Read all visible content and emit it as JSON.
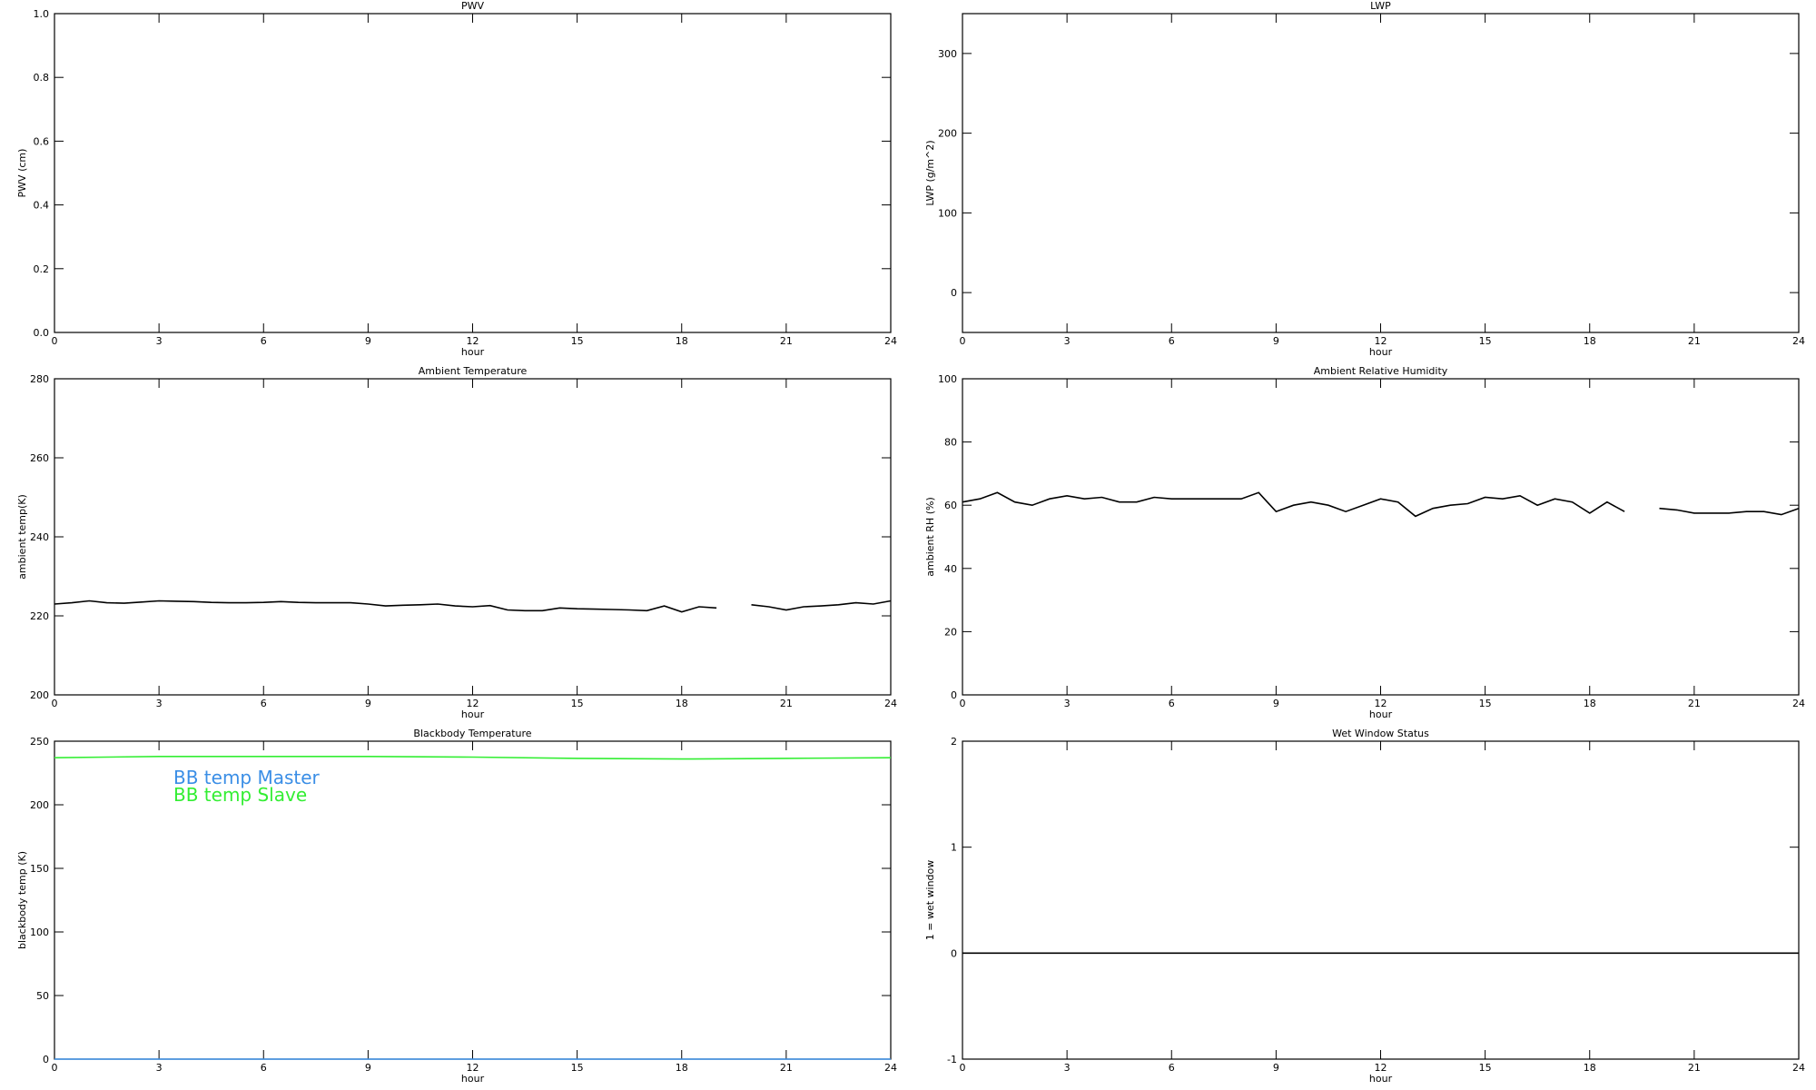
{
  "chart_data": [
    {
      "type": "line",
      "title": "PWV",
      "xlabel": "hour",
      "ylabel": "PWV (cm)",
      "xlim": [
        0,
        24
      ],
      "xticks": [
        0,
        3,
        6,
        9,
        12,
        15,
        18,
        21,
        24
      ],
      "ylim": [
        0,
        1
      ],
      "yticks": [
        {
          "value": 0,
          "label": "0.0"
        },
        0.2,
        0.4,
        0.6,
        0.8,
        {
          "value": 1,
          "label": "1.0"
        }
      ]
    },
    {
      "type": "line",
      "title": "LWP",
      "xlabel": "hour",
      "ylabel": "LWP (g/m^2)",
      "xlim": [
        0,
        24
      ],
      "xticks": [
        0,
        3,
        6,
        9,
        12,
        15,
        18,
        21,
        24
      ],
      "ylim": [
        -50,
        350
      ],
      "yticks": [
        0,
        100,
        200,
        300
      ]
    },
    {
      "type": "line",
      "title": "Ambient Temperature",
      "xlabel": "hour",
      "ylabel": "ambient temp(K)",
      "xlim": [
        0,
        24
      ],
      "xticks": [
        0,
        3,
        6,
        9,
        12,
        15,
        18,
        21,
        24
      ],
      "ylim": [
        200,
        280
      ],
      "yticks": [
        200,
        220,
        240,
        260,
        280
      ],
      "x": [
        0,
        0.5,
        1,
        1.5,
        2,
        2.5,
        3,
        3.5,
        4,
        4.5,
        5,
        5.5,
        6,
        6.5,
        7,
        7.5,
        8,
        8.5,
        9,
        9.5,
        10,
        10.5,
        11,
        11.5,
        12,
        12.5,
        13,
        13.5,
        14,
        14.5,
        15,
        15.5,
        16,
        16.5,
        17,
        17.5,
        18,
        18.5,
        19,
        19.5,
        20,
        20.5,
        21,
        21.5,
        22,
        22.5,
        23,
        23.5,
        24
      ],
      "series": [
        {
          "color": "#000000",
          "values": [
            223,
            223.3,
            223.8,
            223.3,
            223.2,
            223.5,
            223.8,
            223.7,
            223.6,
            223.4,
            223.3,
            223.3,
            223.4,
            223.6,
            223.4,
            223.3,
            223.3,
            223.3,
            223,
            222.5,
            222.7,
            222.8,
            223,
            222.5,
            222.3,
            222.6,
            221.5,
            221.3,
            221.3,
            222,
            221.8,
            221.7,
            221.6,
            221.5,
            221.3,
            222.5,
            221,
            222.3,
            222,
            null,
            222.8,
            222.3,
            221.5,
            222.3,
            222.5,
            222.8,
            223.3,
            223,
            223.8
          ]
        }
      ]
    },
    {
      "type": "line",
      "title": "Ambient Relative Humidity",
      "xlabel": "hour",
      "ylabel": "ambient RH (%)",
      "xlim": [
        0,
        24
      ],
      "xticks": [
        0,
        3,
        6,
        9,
        12,
        15,
        18,
        21,
        24
      ],
      "ylim": [
        0,
        100
      ],
      "yticks": [
        0,
        20,
        40,
        60,
        80,
        100
      ],
      "x": [
        0,
        0.5,
        1,
        1.5,
        2,
        2.5,
        3,
        3.5,
        4,
        4.5,
        5,
        5.5,
        6,
        6.5,
        7,
        7.5,
        8,
        8.5,
        9,
        9.5,
        10,
        10.5,
        11,
        11.5,
        12,
        12.5,
        13,
        13.5,
        14,
        14.5,
        15,
        15.5,
        16,
        16.5,
        17,
        17.5,
        18,
        18.5,
        19,
        19.5,
        20,
        20.5,
        21,
        21.5,
        22,
        22.5,
        23,
        23.5,
        24
      ],
      "series": [
        {
          "color": "#000000",
          "values": [
            61,
            62,
            64,
            61,
            60,
            62,
            63,
            62,
            62.5,
            61,
            61,
            62.5,
            62,
            62,
            62,
            62,
            62,
            64,
            58,
            60,
            61,
            60,
            58,
            60,
            62,
            61,
            56.5,
            59,
            60,
            60.5,
            62.5,
            62,
            63,
            60,
            62,
            61,
            57.5,
            61,
            58,
            null,
            59,
            58.5,
            57.5,
            57.5,
            57.5,
            58,
            58,
            57,
            59
          ]
        }
      ]
    },
    {
      "type": "line",
      "title": "Blackbody Temperature",
      "xlabel": "hour",
      "ylabel": "blackbody temp (K)",
      "xlim": [
        0,
        24
      ],
      "xticks": [
        0,
        3,
        6,
        9,
        12,
        15,
        18,
        21,
        24
      ],
      "ylim": [
        0,
        250
      ],
      "yticks": [
        0,
        50,
        100,
        150,
        200,
        250
      ],
      "x": [
        0,
        3,
        6,
        9,
        12,
        15,
        18,
        21,
        24
      ],
      "series": [
        {
          "name": "BB temp Master",
          "color": "#3a8ee6",
          "values": [
            0,
            0,
            0,
            0,
            0,
            0,
            0,
            0,
            0
          ]
        },
        {
          "name": "BB temp Slave",
          "color": "#33ee33",
          "values": [
            237,
            238,
            238,
            238,
            237.5,
            236.5,
            236,
            236.5,
            237
          ]
        }
      ]
    },
    {
      "type": "line",
      "title": "Wet Window Status",
      "xlabel": "hour",
      "ylabel": "1 = wet window",
      "xlim": [
        0,
        24
      ],
      "xticks": [
        0,
        3,
        6,
        9,
        12,
        15,
        18,
        21,
        24
      ],
      "ylim": [
        -1,
        2
      ],
      "yticks": [
        -1,
        0,
        1,
        2
      ],
      "x": [
        0,
        24
      ],
      "series": [
        {
          "color": "#000000",
          "values": [
            0,
            0
          ]
        }
      ]
    }
  ]
}
